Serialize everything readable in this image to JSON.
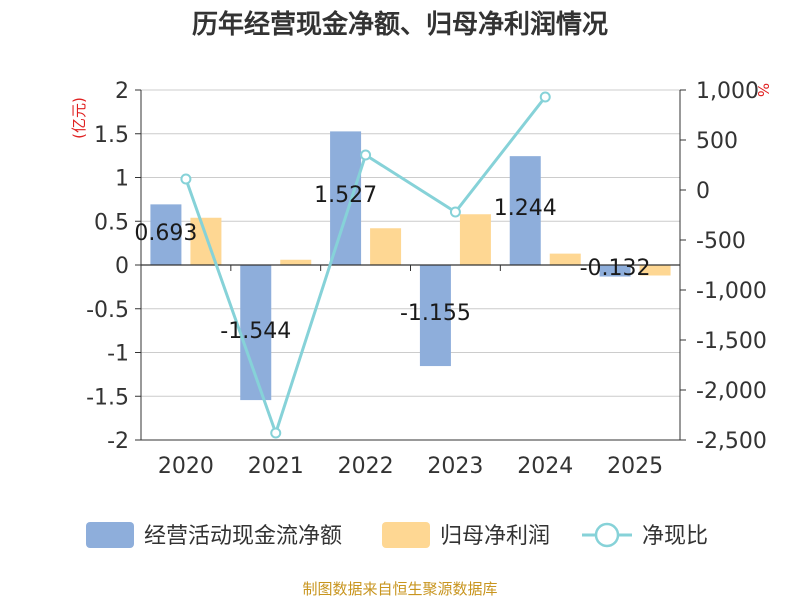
{
  "chart_data": {
    "type": "bar+line",
    "title": "历年经营现金净额、归母净利润情况",
    "categories": [
      "2020",
      "2021",
      "2022",
      "2023",
      "2024",
      "2025"
    ],
    "left_axis": {
      "unit": "(亿元)",
      "min": -2,
      "max": 2,
      "ticks": [
        2,
        1.5,
        1,
        0.5,
        0,
        -0.5,
        -1,
        -1.5,
        -2
      ],
      "tick_labels": [
        "2",
        "1.5",
        "1",
        "0.5",
        "0",
        "-0.5",
        "-1",
        "-1.5",
        "-2"
      ]
    },
    "right_axis": {
      "unit": "%",
      "min": -2500,
      "max": 1000,
      "ticks": [
        1000,
        500,
        0,
        -500,
        -1000,
        -1500,
        -2000,
        -2500
      ],
      "tick_labels": [
        "1,000",
        "500",
        "0",
        "-500",
        "-1,000",
        "-1,500",
        "-2,000",
        "-2,500"
      ]
    },
    "series": [
      {
        "name": "经营活动现金流净额",
        "type": "bar",
        "axis": "left",
        "color": "#8eaedb",
        "values": [
          0.693,
          -1.544,
          1.527,
          -1.155,
          1.244,
          -0.132
        ],
        "labels": [
          "0.693",
          "-1.544",
          "1.527",
          "-1.155",
          "1.244",
          "-0.132"
        ]
      },
      {
        "name": "归母净利润",
        "type": "bar",
        "axis": "left",
        "color": "#fed793",
        "values": [
          0.54,
          0.06,
          0.42,
          0.58,
          0.13,
          -0.12
        ]
      },
      {
        "name": "净现比",
        "type": "line",
        "axis": "right",
        "color": "#86d2d8",
        "values": [
          110,
          -2430,
          350,
          -220,
          930,
          null
        ]
      }
    ],
    "grid": true,
    "legend": "bottom"
  },
  "footer": {
    "source": "制图数据来自恒生聚源数据库"
  }
}
